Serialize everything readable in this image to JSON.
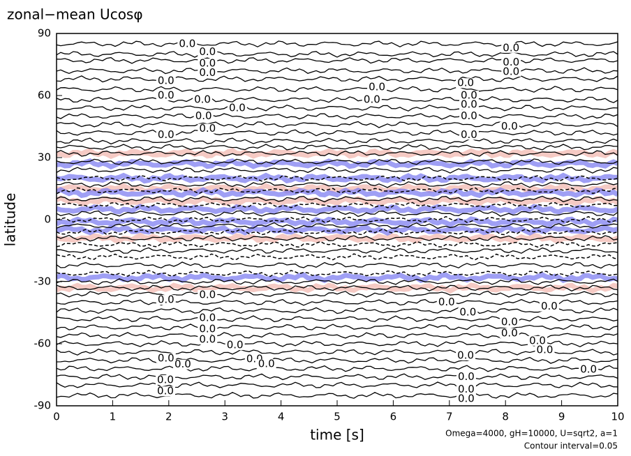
{
  "chart_data": {
    "type": "contour",
    "title": "zonal−mean Ucosφ",
    "x_label": "time [s]",
    "y_label": "latitude",
    "annotations": [
      "Omega=4000, gH=10000, U=sqrt2, a=1",
      "Contour interval=0.05"
    ],
    "xlim": [
      0,
      10
    ],
    "ylim": [
      -90,
      90
    ],
    "xticks": [
      0,
      1,
      2,
      3,
      4,
      5,
      6,
      7,
      8,
      9,
      10
    ],
    "yticks": [
      -90,
      -60,
      -30,
      0,
      30,
      60,
      90
    ],
    "solid_lats": [
      85,
      80,
      77,
      72,
      68,
      63,
      58,
      54,
      50,
      46,
      42,
      38,
      35,
      32,
      28,
      24,
      17,
      10,
      3,
      -3,
      -9,
      -15,
      -22,
      -30,
      -33,
      -36,
      -40,
      -44,
      -48,
      -52,
      -56,
      -60,
      -64,
      -68,
      -72,
      -76,
      -80,
      -85
    ],
    "dashed_lats": [
      20,
      14,
      7,
      0,
      -6,
      -12,
      -18,
      -26
    ],
    "shading": {
      "positive": {
        "color": "#f2b8b0",
        "lats": [
          32,
          15,
          9,
          -9,
          -33
        ]
      },
      "negative": {
        "color": "#7f7ff0",
        "lats": [
          27,
          20,
          13,
          5,
          -1,
          -5,
          -28
        ]
      }
    },
    "contour_labels": [
      {
        "time": 2.33,
        "lat": 85,
        "label": "0.0"
      },
      {
        "time": 2.69,
        "lat": 81,
        "label": "0.0"
      },
      {
        "time": 2.69,
        "lat": 75.5,
        "label": "0.0"
      },
      {
        "time": 2.69,
        "lat": 71,
        "label": "0.0"
      },
      {
        "time": 1.95,
        "lat": 67,
        "label": "0.0"
      },
      {
        "time": 1.95,
        "lat": 60,
        "label": "0.0"
      },
      {
        "time": 2.6,
        "lat": 58,
        "label": "0.0"
      },
      {
        "time": 3.22,
        "lat": 54,
        "label": "0.0"
      },
      {
        "time": 5.71,
        "lat": 64,
        "label": "0.0"
      },
      {
        "time": 5.62,
        "lat": 58,
        "label": "0.0"
      },
      {
        "time": 8.1,
        "lat": 83,
        "label": "0.0"
      },
      {
        "time": 8.1,
        "lat": 76,
        "label": "0.0"
      },
      {
        "time": 8.1,
        "lat": 71.5,
        "label": "0.0"
      },
      {
        "time": 7.29,
        "lat": 66,
        "label": "0.0"
      },
      {
        "time": 7.35,
        "lat": 60,
        "label": "0.0"
      },
      {
        "time": 7.35,
        "lat": 55.6,
        "label": "0.0"
      },
      {
        "time": 7.35,
        "lat": 50,
        "label": "0.0"
      },
      {
        "time": 1.95,
        "lat": 41,
        "label": "0.0"
      },
      {
        "time": 2.62,
        "lat": 50,
        "label": "0.0"
      },
      {
        "time": 2.69,
        "lat": 44,
        "label": "0.0"
      },
      {
        "time": 8.07,
        "lat": 45,
        "label": "0.0"
      },
      {
        "time": 7.35,
        "lat": 41,
        "label": "0.0"
      },
      {
        "time": 1.95,
        "lat": -38.8,
        "label": "0.0"
      },
      {
        "time": 2.69,
        "lat": -36.4,
        "label": "0.0"
      },
      {
        "time": 6.95,
        "lat": -40,
        "label": "0.0"
      },
      {
        "time": 8.78,
        "lat": -42,
        "label": "0.0"
      },
      {
        "time": 7.33,
        "lat": -44.8,
        "label": "0.0"
      },
      {
        "time": 2.69,
        "lat": -47.5,
        "label": "0.0"
      },
      {
        "time": 2.69,
        "lat": -52.9,
        "label": "0.0"
      },
      {
        "time": 2.69,
        "lat": -58,
        "label": "0.0"
      },
      {
        "time": 8.07,
        "lat": -49.5,
        "label": "0.0"
      },
      {
        "time": 8.07,
        "lat": -54.9,
        "label": "0.0"
      },
      {
        "time": 3.18,
        "lat": -60.7,
        "label": "0.0"
      },
      {
        "time": 8.57,
        "lat": -58.6,
        "label": "0.0"
      },
      {
        "time": 8.7,
        "lat": -63,
        "label": "0.0"
      },
      {
        "time": 1.95,
        "lat": -67,
        "label": "0.0"
      },
      {
        "time": 2.25,
        "lat": -70,
        "label": "0.0"
      },
      {
        "time": 3.53,
        "lat": -67.4,
        "label": "0.0"
      },
      {
        "time": 3.74,
        "lat": -69.8,
        "label": "0.0"
      },
      {
        "time": 7.29,
        "lat": -65.7,
        "label": "0.0"
      },
      {
        "time": 9.48,
        "lat": -72.5,
        "label": "0.0"
      },
      {
        "time": 1.94,
        "lat": -77.5,
        "label": "0.0"
      },
      {
        "time": 1.94,
        "lat": -83,
        "label": "0.0"
      },
      {
        "time": 7.3,
        "lat": -76,
        "label": "0.0"
      },
      {
        "time": 7.3,
        "lat": -82,
        "label": "0.0"
      },
      {
        "time": 7.3,
        "lat": -86.6,
        "label": "0.0"
      }
    ]
  }
}
